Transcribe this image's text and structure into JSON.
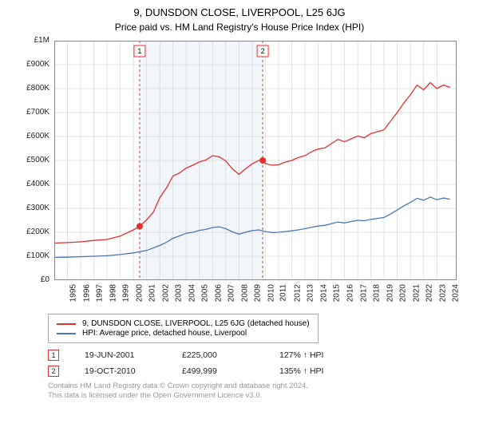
{
  "title": "9, DUNSDON CLOSE, LIVERPOOL, L25 6JG",
  "subtitle": "Price paid vs. HM Land Registry's House Price Index (HPI)",
  "chart": {
    "type": "line",
    "background_color": "#ffffff",
    "grid_color": "#dcdcdc",
    "border_color": "#888888",
    "axis_label_fontsize": 10,
    "ylim": [
      0,
      1000000
    ],
    "ytick_step": 100000,
    "yticks": [
      "£0",
      "£100K",
      "£200K",
      "£300K",
      "£400K",
      "£500K",
      "£600K",
      "£700K",
      "£800K",
      "£900K",
      "£1M"
    ],
    "xlim": [
      1995,
      2025.5
    ],
    "xticks": [
      1995,
      1996,
      1997,
      1998,
      1999,
      2000,
      2001,
      2002,
      2003,
      2004,
      2005,
      2006,
      2007,
      2008,
      2009,
      2010,
      2011,
      2012,
      2013,
      2014,
      2015,
      2016,
      2017,
      2018,
      2019,
      2020,
      2021,
      2022,
      2023,
      2024
    ],
    "shaded_band": {
      "start": 2001.47,
      "end": 2010.8,
      "fill": "#e8eff7"
    },
    "reference_lines": [
      {
        "id": "1",
        "x": 2001.47,
        "color": "#e03030"
      },
      {
        "id": "2",
        "x": 2010.8,
        "color": "#e03030"
      }
    ],
    "sale_markers": [
      {
        "x": 2001.47,
        "y": 225000,
        "color": "#e03030"
      },
      {
        "x": 2010.8,
        "y": 499999,
        "color": "#e03030"
      }
    ],
    "series": [
      {
        "name": "property_price",
        "label": "9, DUNSDON CLOSE, LIVERPOOL, L25 6JG (detached house)",
        "color": "#e03030",
        "line_width": 1.3,
        "points": [
          [
            1995,
            155000
          ],
          [
            1996,
            157000
          ],
          [
            1997,
            160000
          ],
          [
            1998,
            166000
          ],
          [
            1999,
            170000
          ],
          [
            2000,
            184000
          ],
          [
            2001,
            210000
          ],
          [
            2001.47,
            225000
          ],
          [
            2002,
            252000
          ],
          [
            2002.5,
            283000
          ],
          [
            2003,
            345000
          ],
          [
            2003.5,
            385000
          ],
          [
            2004,
            435000
          ],
          [
            2004.5,
            448000
          ],
          [
            2005,
            468000
          ],
          [
            2005.5,
            480000
          ],
          [
            2006,
            494000
          ],
          [
            2006.5,
            502000
          ],
          [
            2007,
            520000
          ],
          [
            2007.5,
            515000
          ],
          [
            2008,
            498000
          ],
          [
            2008.5,
            465000
          ],
          [
            2009,
            442000
          ],
          [
            2009.5,
            465000
          ],
          [
            2010,
            486000
          ],
          [
            2010.5,
            500000
          ],
          [
            2010.8,
            499999
          ],
          [
            2011,
            487000
          ],
          [
            2011.5,
            480000
          ],
          [
            2012,
            482000
          ],
          [
            2012.5,
            493000
          ],
          [
            2013,
            500000
          ],
          [
            2013.5,
            512000
          ],
          [
            2014,
            520000
          ],
          [
            2014.5,
            536000
          ],
          [
            2015,
            548000
          ],
          [
            2015.5,
            552000
          ],
          [
            2016,
            570000
          ],
          [
            2016.5,
            588000
          ],
          [
            2017,
            578000
          ],
          [
            2017.5,
            590000
          ],
          [
            2018,
            602000
          ],
          [
            2018.5,
            595000
          ],
          [
            2019,
            612000
          ],
          [
            2019.5,
            620000
          ],
          [
            2020,
            628000
          ],
          [
            2020.5,
            665000
          ],
          [
            2021,
            700000
          ],
          [
            2021.5,
            740000
          ],
          [
            2022,
            775000
          ],
          [
            2022.5,
            815000
          ],
          [
            2023,
            795000
          ],
          [
            2023.5,
            825000
          ],
          [
            2024,
            800000
          ],
          [
            2024.5,
            815000
          ],
          [
            2025,
            805000
          ]
        ]
      },
      {
        "name": "hpi_liverpool_detached",
        "label": "HPI: Average price, detached house, Liverpool",
        "color": "#4a77b4",
        "line_width": 1.2,
        "points": [
          [
            1995,
            95000
          ],
          [
            1996,
            96000
          ],
          [
            1997,
            98000
          ],
          [
            1998,
            100000
          ],
          [
            1999,
            102000
          ],
          [
            2000,
            107000
          ],
          [
            2001,
            114000
          ],
          [
            2002,
            124000
          ],
          [
            2003,
            145000
          ],
          [
            2003.5,
            158000
          ],
          [
            2004,
            175000
          ],
          [
            2004.5,
            185000
          ],
          [
            2005,
            196000
          ],
          [
            2005.5,
            200000
          ],
          [
            2006,
            208000
          ],
          [
            2006.5,
            212000
          ],
          [
            2007,
            220000
          ],
          [
            2007.5,
            223000
          ],
          [
            2008,
            215000
          ],
          [
            2008.5,
            202000
          ],
          [
            2009,
            192000
          ],
          [
            2009.5,
            200000
          ],
          [
            2010,
            207000
          ],
          [
            2010.5,
            210000
          ],
          [
            2011,
            203000
          ],
          [
            2011.5,
            199000
          ],
          [
            2012,
            200000
          ],
          [
            2012.5,
            203000
          ],
          [
            2013,
            206000
          ],
          [
            2013.5,
            210000
          ],
          [
            2014,
            215000
          ],
          [
            2014.5,
            221000
          ],
          [
            2015,
            226000
          ],
          [
            2015.5,
            229000
          ],
          [
            2016,
            236000
          ],
          [
            2016.5,
            243000
          ],
          [
            2017,
            239000
          ],
          [
            2017.5,
            245000
          ],
          [
            2018,
            250000
          ],
          [
            2018.5,
            248000
          ],
          [
            2019,
            254000
          ],
          [
            2019.5,
            258000
          ],
          [
            2020,
            262000
          ],
          [
            2020.5,
            277000
          ],
          [
            2021,
            293000
          ],
          [
            2021.5,
            310000
          ],
          [
            2022,
            325000
          ],
          [
            2022.5,
            342000
          ],
          [
            2023,
            334000
          ],
          [
            2023.5,
            347000
          ],
          [
            2024,
            336000
          ],
          [
            2024.5,
            343000
          ],
          [
            2025,
            338000
          ]
        ]
      }
    ]
  },
  "legend": {
    "rows": [
      {
        "color": "#e03030",
        "text": "9, DUNSDON CLOSE, LIVERPOOL, L25 6JG (detached house)"
      },
      {
        "color": "#4a77b4",
        "text": "HPI: Average price, detached house, Liverpool"
      }
    ]
  },
  "sales": [
    {
      "marker": "1",
      "marker_color": "#e03030",
      "date": "19-JUN-2001",
      "price": "£225,000",
      "pct": "127% ↑ HPI"
    },
    {
      "marker": "2",
      "marker_color": "#e03030",
      "date": "19-OCT-2010",
      "price": "£499,999",
      "pct": "135% ↑ HPI"
    }
  ],
  "footnote_line1": "Contains HM Land Registry data © Crown copyright and database right 2024.",
  "footnote_line2": "This data is licensed under the Open Government Licence v3.0."
}
